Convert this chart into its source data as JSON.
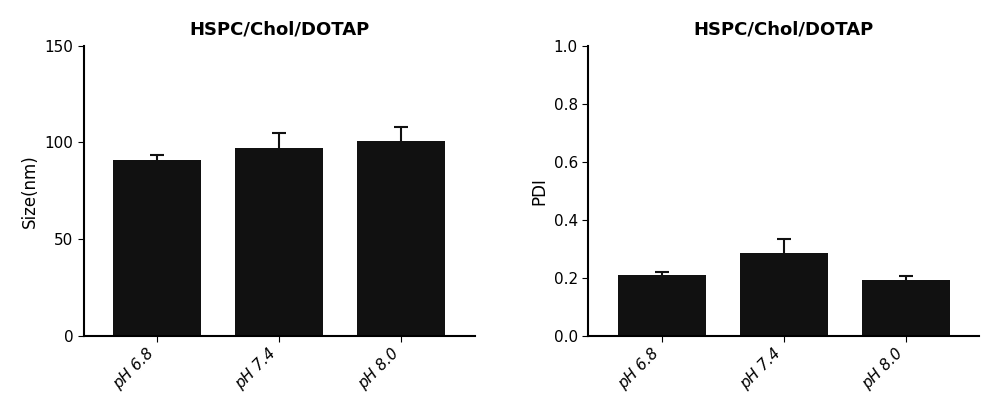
{
  "left_title": "HSPC/Chol/DOTAP",
  "right_title": "HSPC/Chol/DOTAP",
  "categories": [
    "pH 6.8",
    "pH 7.4",
    "pH 8.0"
  ],
  "size_values": [
    91,
    97,
    101
  ],
  "size_errors": [
    2.5,
    8,
    7
  ],
  "pdi_values": [
    0.208,
    0.285,
    0.192
  ],
  "pdi_errors": [
    0.012,
    0.048,
    0.012
  ],
  "bar_color": "#111111",
  "bar_width": 0.72,
  "size_ylim": [
    0,
    150
  ],
  "size_yticks": [
    0,
    50,
    100,
    150
  ],
  "pdi_ylim": [
    0.0,
    1.0
  ],
  "pdi_yticks": [
    0.0,
    0.2,
    0.4,
    0.6,
    0.8,
    1.0
  ],
  "size_ylabel": "Size(nm)",
  "pdi_ylabel": "PDI",
  "title_fontsize": 13,
  "label_fontsize": 12,
  "tick_fontsize": 11,
  "background_color": "#ffffff",
  "capsize": 5,
  "elinewidth": 1.5,
  "ecolor": "#111111",
  "spine_linewidth": 1.5
}
